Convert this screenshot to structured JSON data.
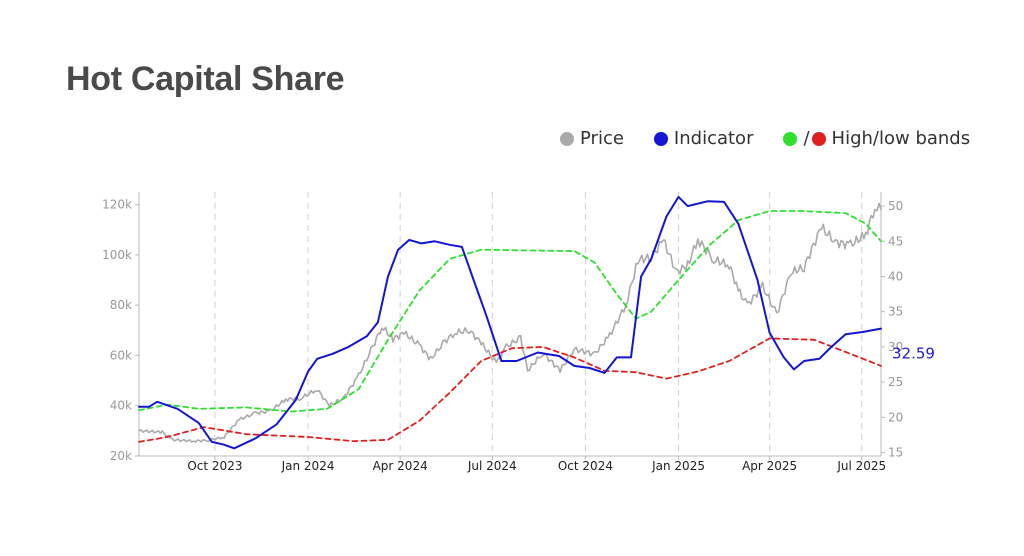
{
  "title": "Hot Capital Share",
  "legend": {
    "price": "Price",
    "indicator": "Indicator",
    "bands_sep": "/",
    "bands": "High/low bands"
  },
  "colors": {
    "price": "#aaaaaa",
    "indicator": "#1515d6",
    "high_band": "#2fe02f",
    "low_band": "#e02020",
    "grid": "#d0d0d0",
    "end_label": "#1c1ccf"
  },
  "chart_data": {
    "type": "line",
    "x_range": [
      "2023-07-18",
      "2025-07-20"
    ],
    "x_ticks": [
      {
        "date": "2023-10-01",
        "label": "Oct 2023"
      },
      {
        "date": "2024-01-01",
        "label": "Jan 2024"
      },
      {
        "date": "2024-04-01",
        "label": "Apr 2024"
      },
      {
        "date": "2024-07-01",
        "label": "Jul 2024"
      },
      {
        "date": "2024-10-01",
        "label": "Oct 2024"
      },
      {
        "date": "2025-01-01",
        "label": "Jan 2025"
      },
      {
        "date": "2025-04-01",
        "label": "Apr 2025"
      },
      {
        "date": "2025-07-01",
        "label": "Jul 2025"
      }
    ],
    "left_axis": {
      "ylim": [
        20000,
        125000
      ],
      "ticks": [
        20000,
        40000,
        60000,
        80000,
        100000,
        120000
      ],
      "labels": [
        "20k",
        "40k",
        "60k",
        "80k",
        "100k",
        "120k"
      ]
    },
    "right_axis": {
      "ylim": [
        14.5,
        52
      ],
      "ticks": [
        15,
        20,
        25,
        30,
        35,
        40,
        45,
        50
      ],
      "labels": [
        "15",
        "20",
        "25",
        "30",
        "35",
        "40",
        "45",
        "50"
      ]
    },
    "end_label": "32.59",
    "series": [
      {
        "name": "Price",
        "axis": "left",
        "style": "solid",
        "points": [
          [
            "2023-07-18",
            30000
          ],
          [
            "2023-08-10",
            29500
          ],
          [
            "2023-08-20",
            26500
          ],
          [
            "2023-09-10",
            25900
          ],
          [
            "2023-09-25",
            26300
          ],
          [
            "2023-10-10",
            27500
          ],
          [
            "2023-10-25",
            34500
          ],
          [
            "2023-11-10",
            37000
          ],
          [
            "2023-11-25",
            38000
          ],
          [
            "2023-12-10",
            42500
          ],
          [
            "2023-12-25",
            43000
          ],
          [
            "2024-01-10",
            46500
          ],
          [
            "2024-01-22",
            40000
          ],
          [
            "2024-02-05",
            43000
          ],
          [
            "2024-02-20",
            52000
          ],
          [
            "2024-03-05",
            63500
          ],
          [
            "2024-03-14",
            71500
          ],
          [
            "2024-03-25",
            66500
          ],
          [
            "2024-04-05",
            69000
          ],
          [
            "2024-04-20",
            64000
          ],
          [
            "2024-05-01",
            58500
          ],
          [
            "2024-05-15",
            65500
          ],
          [
            "2024-05-25",
            69000
          ],
          [
            "2024-06-08",
            70000
          ],
          [
            "2024-06-20",
            65000
          ],
          [
            "2024-07-05",
            57000
          ],
          [
            "2024-07-15",
            63500
          ],
          [
            "2024-07-29",
            67000
          ],
          [
            "2024-08-05",
            54000
          ],
          [
            "2024-08-20",
            61000
          ],
          [
            "2024-09-06",
            54000
          ],
          [
            "2024-09-20",
            62500
          ],
          [
            "2024-10-10",
            60500
          ],
          [
            "2024-10-25",
            68000
          ],
          [
            "2024-11-10",
            80000
          ],
          [
            "2024-11-22",
            98000
          ],
          [
            "2024-12-05",
            99000
          ],
          [
            "2024-12-17",
            106000
          ],
          [
            "2024-12-30",
            93000
          ],
          [
            "2025-01-10",
            96000
          ],
          [
            "2025-01-20",
            106000
          ],
          [
            "2025-02-05",
            98000
          ],
          [
            "2025-02-20",
            96000
          ],
          [
            "2025-03-01",
            86000
          ],
          [
            "2025-03-10",
            80000
          ],
          [
            "2025-03-25",
            87500
          ],
          [
            "2025-04-08",
            76500
          ],
          [
            "2025-04-22",
            93000
          ],
          [
            "2025-05-05",
            95000
          ],
          [
            "2025-05-22",
            111000
          ],
          [
            "2025-06-05",
            105000
          ],
          [
            "2025-06-20",
            104000
          ],
          [
            "2025-07-05",
            108000
          ],
          [
            "2025-07-14",
            119000
          ],
          [
            "2025-07-20",
            118000
          ]
        ]
      },
      {
        "name": "Indicator",
        "axis": "right",
        "style": "solid",
        "points": [
          [
            "2023-07-18",
            21.5
          ],
          [
            "2023-07-28",
            21.5
          ],
          [
            "2023-08-05",
            22.2
          ],
          [
            "2023-08-25",
            21.2
          ],
          [
            "2023-09-15",
            19.2
          ],
          [
            "2023-09-28",
            16.5
          ],
          [
            "2023-10-10",
            16.1
          ],
          [
            "2023-10-20",
            15.6
          ],
          [
            "2023-11-10",
            17.0
          ],
          [
            "2023-12-01",
            19.0
          ],
          [
            "2023-12-20",
            22.5
          ],
          [
            "2024-01-01",
            26.5
          ],
          [
            "2024-01-10",
            28.3
          ],
          [
            "2024-01-25",
            29.0
          ],
          [
            "2024-02-10",
            30.0
          ],
          [
            "2024-02-28",
            31.5
          ],
          [
            "2024-03-10",
            33.5
          ],
          [
            "2024-03-20",
            40.0
          ],
          [
            "2024-03-30",
            43.8
          ],
          [
            "2024-04-10",
            45.2
          ],
          [
            "2024-04-22",
            44.7
          ],
          [
            "2024-05-05",
            45.0
          ],
          [
            "2024-05-20",
            44.5
          ],
          [
            "2024-06-01",
            44.2
          ],
          [
            "2024-06-15",
            38.5
          ],
          [
            "2024-06-25",
            34.5
          ],
          [
            "2024-07-10",
            28.0
          ],
          [
            "2024-07-25",
            28.0
          ],
          [
            "2024-08-15",
            29.2
          ],
          [
            "2024-09-05",
            28.7
          ],
          [
            "2024-09-20",
            27.3
          ],
          [
            "2024-10-05",
            27.0
          ],
          [
            "2024-10-20",
            26.3
          ],
          [
            "2024-11-01",
            28.5
          ],
          [
            "2024-11-15",
            28.5
          ],
          [
            "2024-11-25",
            40.0
          ],
          [
            "2024-12-05",
            42.5
          ],
          [
            "2024-12-20",
            48.5
          ],
          [
            "2025-01-01",
            51.3
          ],
          [
            "2025-01-10",
            50.0
          ],
          [
            "2025-01-30",
            50.7
          ],
          [
            "2025-02-15",
            50.6
          ],
          [
            "2025-03-01",
            47.5
          ],
          [
            "2025-03-20",
            39.5
          ],
          [
            "2025-04-01",
            32.0
          ],
          [
            "2025-04-15",
            28.5
          ],
          [
            "2025-04-25",
            26.8
          ],
          [
            "2025-05-05",
            28.0
          ],
          [
            "2025-05-20",
            28.3
          ],
          [
            "2025-06-01",
            30.0
          ],
          [
            "2025-06-15",
            31.8
          ],
          [
            "2025-07-01",
            32.1
          ],
          [
            "2025-07-20",
            32.6
          ]
        ]
      },
      {
        "name": "High band",
        "axis": "right",
        "style": "dashed",
        "points": [
          [
            "2023-07-18",
            21.0
          ],
          [
            "2023-08-15",
            21.8
          ],
          [
            "2023-09-15",
            21.2
          ],
          [
            "2023-11-01",
            21.4
          ],
          [
            "2023-12-15",
            20.8
          ],
          [
            "2024-01-20",
            21.2
          ],
          [
            "2024-02-20",
            24.0
          ],
          [
            "2024-03-20",
            31.0
          ],
          [
            "2024-04-20",
            38.0
          ],
          [
            "2024-05-20",
            42.5
          ],
          [
            "2024-06-20",
            43.8
          ],
          [
            "2024-08-01",
            43.7
          ],
          [
            "2024-09-20",
            43.6
          ],
          [
            "2024-10-10",
            42.0
          ],
          [
            "2024-11-01",
            37.5
          ],
          [
            "2024-11-20",
            34.0
          ],
          [
            "2024-12-05",
            35.0
          ],
          [
            "2025-01-01",
            39.5
          ],
          [
            "2025-02-01",
            44.5
          ],
          [
            "2025-03-01",
            48.0
          ],
          [
            "2025-04-01",
            49.3
          ],
          [
            "2025-05-01",
            49.3
          ],
          [
            "2025-06-15",
            49.0
          ],
          [
            "2025-07-05",
            47.5
          ],
          [
            "2025-07-20",
            45.0
          ]
        ]
      },
      {
        "name": "Low band",
        "axis": "right",
        "style": "dashed",
        "points": [
          [
            "2023-07-18",
            16.5
          ],
          [
            "2023-08-15",
            17.2
          ],
          [
            "2023-09-20",
            18.6
          ],
          [
            "2023-11-01",
            17.6
          ],
          [
            "2024-01-01",
            17.2
          ],
          [
            "2024-02-15",
            16.6
          ],
          [
            "2024-03-20",
            16.8
          ],
          [
            "2024-04-20",
            19.5
          ],
          [
            "2024-05-20",
            23.5
          ],
          [
            "2024-06-20",
            28.0
          ],
          [
            "2024-07-20",
            29.8
          ],
          [
            "2024-08-20",
            30.0
          ],
          [
            "2024-09-20",
            28.5
          ],
          [
            "2024-10-20",
            26.6
          ],
          [
            "2024-11-20",
            26.4
          ],
          [
            "2024-12-20",
            25.5
          ],
          [
            "2025-01-20",
            26.5
          ],
          [
            "2025-02-20",
            28.0
          ],
          [
            "2025-04-01",
            31.2
          ],
          [
            "2025-05-15",
            31.0
          ],
          [
            "2025-06-20",
            29.0
          ],
          [
            "2025-07-20",
            27.3
          ]
        ]
      }
    ]
  }
}
